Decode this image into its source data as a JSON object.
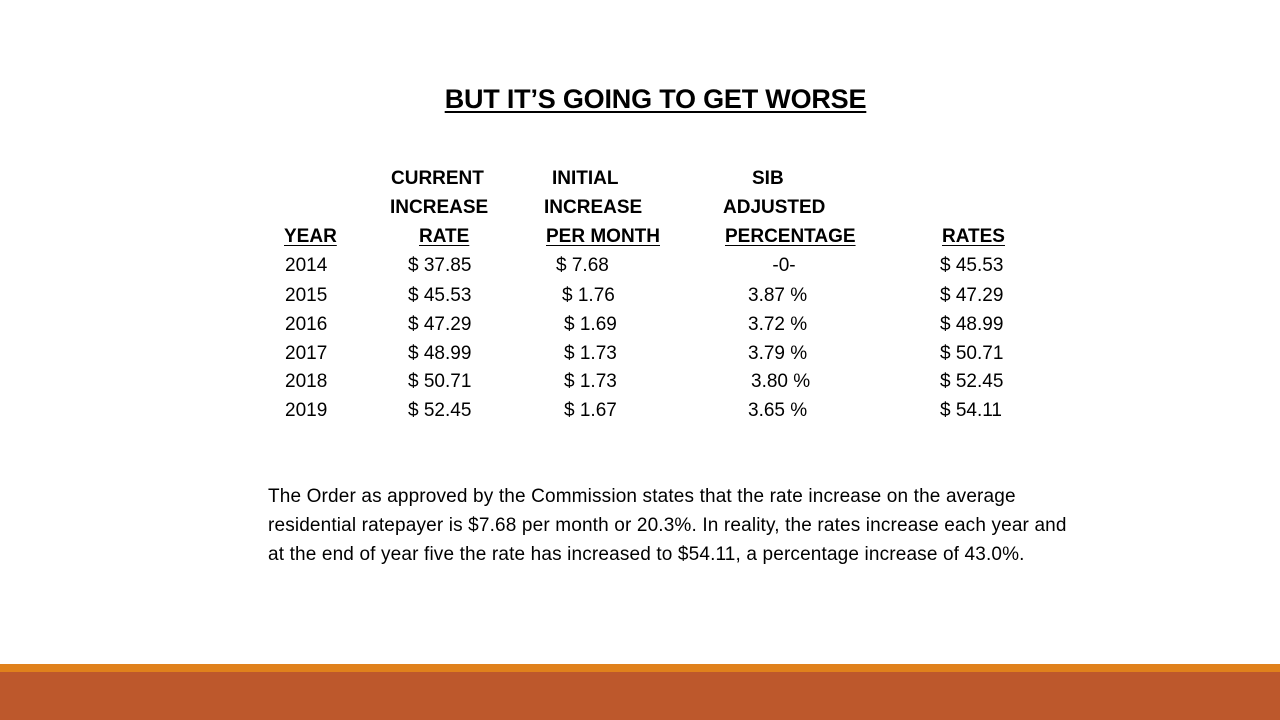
{
  "slide": {
    "title": "BUT IT’S GOING TO GET WORSE",
    "footnote": "The Order as approved by the Commission states that the rate increase on the average residential ratepayer is $7.68 per month or 20.3%. In reality, the rates increase each year and at the end of year five the rate has increased to $54.11, a percentage increase of 43.0%."
  },
  "table": {
    "header_line1": [
      "CURRENT",
      "INITIAL",
      "SIB"
    ],
    "header_line2": [
      "INCREASE",
      "INCREASE",
      "ADJUSTED"
    ],
    "header_line3": [
      "YEAR",
      "RATE",
      "PER MONTH",
      "PERCENTAGE",
      "RATES"
    ],
    "rows": [
      {
        "year": "2014",
        "current_rate": "$ 37.85",
        "increase": "$ 7.68",
        "sib_pct": "-0-",
        "rates": "$ 45.53"
      },
      {
        "year": "2015",
        "current_rate": "$ 45.53",
        "increase": "$ 1.76",
        "sib_pct": "3.87 %",
        "rates": "$ 47.29"
      },
      {
        "year": "2016",
        "current_rate": "$ 47.29",
        "increase": "$ 1.69",
        "sib_pct": "3.72 %",
        "rates": "$ 48.99"
      },
      {
        "year": "2017",
        "current_rate": "$ 48.99",
        "increase": "$ 1.73",
        "sib_pct": "3.79 %",
        "rates": "$ 50.71"
      },
      {
        "year": "2018",
        "current_rate": "$ 50.71",
        "increase": "$ 1.73",
        "sib_pct": "3.80 %",
        "rates": "$ 52.45"
      },
      {
        "year": "2019",
        "current_rate": "$ 52.45",
        "increase": "$ 1.67",
        "sib_pct": "3.65 %",
        "rates": "$ 54.11"
      }
    ]
  },
  "colors": {
    "band_top": "#e0811c",
    "band_main": "#bd582c"
  }
}
